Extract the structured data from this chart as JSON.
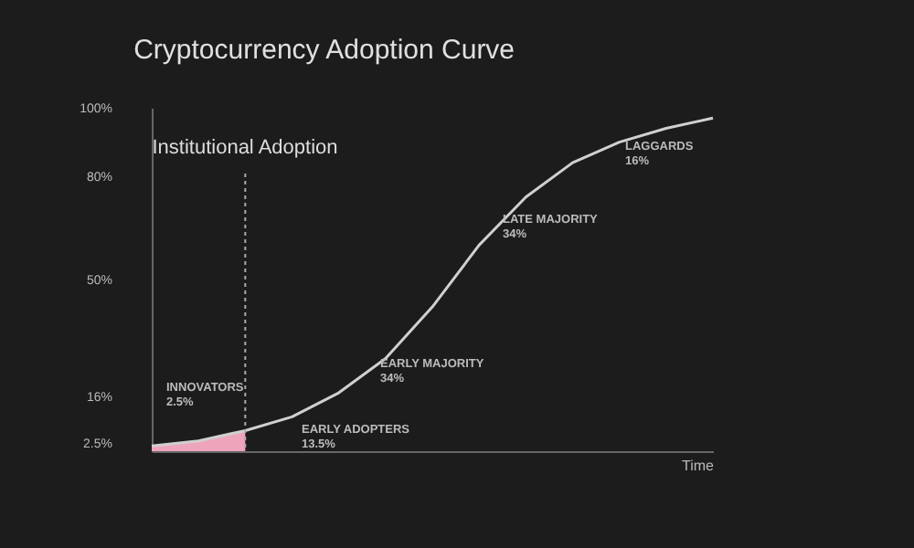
{
  "chart_data": {
    "type": "line",
    "title": "Cryptocurrency Adoption Curve",
    "xlabel": "Time",
    "categories": [
      null,
      null,
      null,
      null,
      null,
      null,
      null,
      null,
      null,
      null,
      null,
      null,
      null
    ],
    "series": [
      {
        "type": "area",
        "color": "#eea5bb",
        "values": [
          1.5,
          3,
          6,
          null,
          null,
          null,
          null,
          null,
          null,
          null,
          null,
          null,
          null
        ]
      },
      {
        "color": "#d0d0d0",
        "values": [
          1.5,
          3,
          6,
          10,
          17,
          27,
          42,
          60,
          74,
          84,
          90,
          94,
          97
        ]
      }
    ],
    "ylim": [
      0,
      100
    ],
    "yticks": [
      {
        "value": 2.5,
        "label": "2.5%"
      },
      {
        "value": 16,
        "label": "16%"
      },
      {
        "value": 50,
        "label": "50%"
      },
      {
        "value": 80,
        "label": "80%"
      },
      {
        "value": 100,
        "label": "100%"
      }
    ],
    "annotations": [
      "Institutional Adoption",
      "INNOVATORS\n2.5%",
      "EARLY ADOPTERS\n13.5%",
      "EARLY MAJORITY\n34%",
      "LATE MAJORITY\n34%",
      "LAGGARDS\n16%"
    ],
    "grid": false
  }
}
